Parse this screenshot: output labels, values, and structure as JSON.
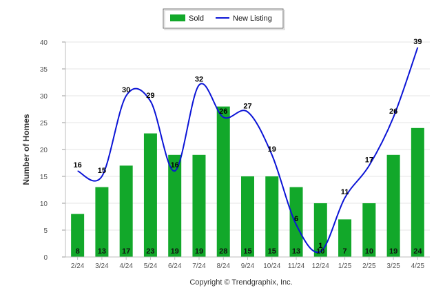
{
  "chart_data": {
    "type": "bar",
    "categories": [
      "2/24",
      "3/24",
      "4/24",
      "5/24",
      "6/24",
      "7/24",
      "8/24",
      "9/24",
      "10/24",
      "11/24",
      "12/24",
      "1/25",
      "2/25",
      "3/25",
      "4/25"
    ],
    "series": [
      {
        "name": "Sold",
        "type": "bar",
        "color": "#12a82a",
        "values": [
          8,
          13,
          17,
          23,
          19,
          19,
          28,
          15,
          15,
          13,
          10,
          7,
          10,
          19,
          24
        ]
      },
      {
        "name": "New Listing",
        "type": "line",
        "color": "#0b14d6",
        "values": [
          16,
          15,
          30,
          29,
          16,
          32,
          26,
          27,
          19,
          6,
          1,
          11,
          17,
          26,
          39
        ]
      }
    ],
    "xlabel": "",
    "ylabel": "Number of Homes",
    "ylim": [
      0,
      40
    ],
    "yticks": [
      "0",
      "5",
      "10",
      "15",
      "20",
      "25",
      "30",
      "35",
      "40"
    ],
    "grid": true,
    "legend": "top-center"
  },
  "footer": "Copyright © Trendgraphix, Inc."
}
